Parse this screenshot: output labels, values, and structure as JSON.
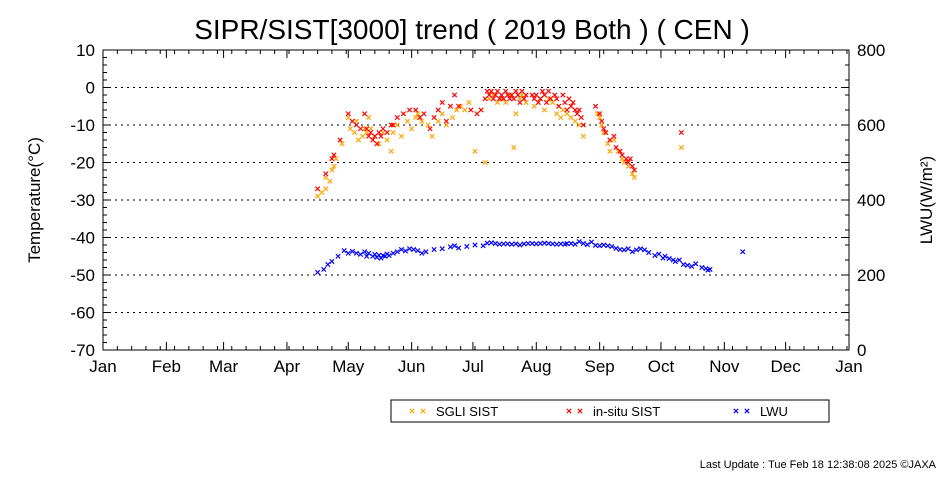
{
  "chart_data": {
    "type": "scatter",
    "title": "SIPR/SIST[3000] trend ( 2019 Both ) ( CEN )",
    "ylabel": "Temperature(°C)",
    "y2label": "LWU(W/m²)",
    "x_ticks": [
      "Jan",
      "Feb",
      "Mar",
      "Apr",
      "May",
      "Jun",
      "Jul",
      "Aug",
      "Sep",
      "Oct",
      "Nov",
      "Dec",
      "Jan"
    ],
    "x_unit": "day of year",
    "x_range": [
      1,
      366
    ],
    "ylim": [
      -70,
      10
    ],
    "y_ticks": [
      "10",
      "0",
      "-10",
      "-20",
      "-30",
      "-40",
      "-50",
      "-60",
      "-70"
    ],
    "y2lim": [
      0,
      800
    ],
    "y2_ticks": [
      "800",
      "600",
      "400",
      "200",
      "0"
    ],
    "grid": "dotted horizontal lines at -60 to 0",
    "legend_position": "bottom-right",
    "legend_labels": [
      "SGLI SIST",
      "in-situ SIST",
      "LWU"
    ],
    "series": [
      {
        "name": "SGLI SIST",
        "axis": "left",
        "color": "#ffa500",
        "points": [
          [
            106,
            -29
          ],
          [
            108,
            -28
          ],
          [
            110,
            -27
          ],
          [
            110,
            -24
          ],
          [
            112,
            -25
          ],
          [
            113,
            -22
          ],
          [
            114,
            -21
          ],
          [
            115,
            -19
          ],
          [
            118,
            -15
          ],
          [
            121,
            -8
          ],
          [
            122,
            -11
          ],
          [
            124,
            -12
          ],
          [
            125,
            -9
          ],
          [
            126,
            -14
          ],
          [
            128,
            -13
          ],
          [
            129,
            -11
          ],
          [
            130,
            -12
          ],
          [
            131,
            -8
          ],
          [
            132,
            -11
          ],
          [
            134,
            -13
          ],
          [
            136,
            -15
          ],
          [
            138,
            -12
          ],
          [
            140,
            -14
          ],
          [
            142,
            -17
          ],
          [
            143,
            -12
          ],
          [
            145,
            -10
          ],
          [
            147,
            -13
          ],
          [
            150,
            -9
          ],
          [
            152,
            -11
          ],
          [
            154,
            -8
          ],
          [
            155,
            -7
          ],
          [
            157,
            -9
          ],
          [
            160,
            -10
          ],
          [
            162,
            -13
          ],
          [
            165,
            -9
          ],
          [
            167,
            -7
          ],
          [
            169,
            -10
          ],
          [
            172,
            -8
          ],
          [
            174,
            -6
          ],
          [
            176,
            -5
          ],
          [
            178,
            -6
          ],
          [
            180,
            -4
          ],
          [
            183,
            -17
          ],
          [
            188,
            -20
          ],
          [
            190,
            -3
          ],
          [
            192,
            -2
          ],
          [
            194,
            -4
          ],
          [
            196,
            -3
          ],
          [
            198,
            -4
          ],
          [
            200,
            -2
          ],
          [
            202,
            -16
          ],
          [
            203,
            -7
          ],
          [
            205,
            -3
          ],
          [
            206,
            -2
          ],
          [
            208,
            -4
          ],
          [
            212,
            -5
          ],
          [
            215,
            -3
          ],
          [
            217,
            -6
          ],
          [
            219,
            -3
          ],
          [
            221,
            -4
          ],
          [
            223,
            -7
          ],
          [
            224,
            -5
          ],
          [
            225,
            -8
          ],
          [
            226,
            -6
          ],
          [
            228,
            -7
          ],
          [
            230,
            -8
          ],
          [
            232,
            -9
          ],
          [
            234,
            -10
          ],
          [
            236,
            -13
          ],
          [
            243,
            -7
          ],
          [
            244,
            -8
          ],
          [
            245,
            -10
          ],
          [
            246,
            -12
          ],
          [
            248,
            -15
          ],
          [
            249,
            -17
          ],
          [
            251,
            -14
          ],
          [
            253,
            -17
          ],
          [
            255,
            -19
          ],
          [
            256,
            -20
          ],
          [
            258,
            -21
          ],
          [
            260,
            -23
          ],
          [
            261,
            -24
          ],
          [
            284,
            -16
          ]
        ]
      },
      {
        "name": "in-situ SIST",
        "axis": "left",
        "color": "#ff0000",
        "points": [
          [
            106,
            -27
          ],
          [
            110,
            -23
          ],
          [
            113,
            -19
          ],
          [
            114,
            -18
          ],
          [
            117,
            -14
          ],
          [
            121,
            -7
          ],
          [
            123,
            -9
          ],
          [
            125,
            -10
          ],
          [
            127,
            -11
          ],
          [
            129,
            -7
          ],
          [
            130,
            -11
          ],
          [
            131,
            -13
          ],
          [
            132,
            -12
          ],
          [
            133,
            -14
          ],
          [
            134,
            -13
          ],
          [
            135,
            -15
          ],
          [
            136,
            -12
          ],
          [
            137,
            -13
          ],
          [
            138,
            -11
          ],
          [
            140,
            -12
          ],
          [
            142,
            -10
          ],
          [
            143,
            -10
          ],
          [
            145,
            -8
          ],
          [
            148,
            -7
          ],
          [
            151,
            -6
          ],
          [
            154,
            -6
          ],
          [
            156,
            -8
          ],
          [
            158,
            -7
          ],
          [
            161,
            -11
          ],
          [
            163,
            -8
          ],
          [
            165,
            -6
          ],
          [
            167,
            -4
          ],
          [
            169,
            -9
          ],
          [
            171,
            -5
          ],
          [
            173,
            -2
          ],
          [
            175,
            -5
          ],
          [
            181,
            -6
          ],
          [
            184,
            -7
          ],
          [
            186,
            -6
          ],
          [
            188,
            -3
          ],
          [
            189,
            -1
          ],
          [
            190,
            -2
          ],
          [
            191,
            -1
          ],
          [
            192,
            -3
          ],
          [
            193,
            -2
          ],
          [
            194,
            -1
          ],
          [
            195,
            -3
          ],
          [
            196,
            -2
          ],
          [
            197,
            -3
          ],
          [
            198,
            -1
          ],
          [
            199,
            -2
          ],
          [
            200,
            -3
          ],
          [
            201,
            -2
          ],
          [
            202,
            -3
          ],
          [
            203,
            -1
          ],
          [
            204,
            -2
          ],
          [
            205,
            -4
          ],
          [
            206,
            -1
          ],
          [
            207,
            -3
          ],
          [
            208,
            -2
          ],
          [
            211,
            -2
          ],
          [
            212,
            -3
          ],
          [
            213,
            -2
          ],
          [
            214,
            -4
          ],
          [
            215,
            -3
          ],
          [
            216,
            -1
          ],
          [
            217,
            -2
          ],
          [
            218,
            -4
          ],
          [
            219,
            -1
          ],
          [
            220,
            -3
          ],
          [
            222,
            -2
          ],
          [
            223,
            -3
          ],
          [
            224,
            -5
          ],
          [
            226,
            -2
          ],
          [
            227,
            -4
          ],
          [
            228,
            -6
          ],
          [
            229,
            -3
          ],
          [
            230,
            -5
          ],
          [
            231,
            -4
          ],
          [
            232,
            -6
          ],
          [
            233,
            -7
          ],
          [
            234,
            -6
          ],
          [
            235,
            -8
          ],
          [
            236,
            -10
          ],
          [
            242,
            -5
          ],
          [
            244,
            -7
          ],
          [
            245,
            -9
          ],
          [
            246,
            -11
          ],
          [
            247,
            -12
          ],
          [
            249,
            -14
          ],
          [
            251,
            -13
          ],
          [
            252,
            -16
          ],
          [
            254,
            -17
          ],
          [
            255,
            -18
          ],
          [
            257,
            -19
          ],
          [
            258,
            -20
          ],
          [
            259,
            -19
          ],
          [
            260,
            -21
          ],
          [
            261,
            -22
          ],
          [
            284,
            -12
          ]
        ]
      },
      {
        "name": "LWU",
        "axis": "right",
        "color": "#0000ff",
        "points": [
          [
            106,
            207
          ],
          [
            109,
            215
          ],
          [
            111,
            228
          ],
          [
            113,
            236
          ],
          [
            116,
            250
          ],
          [
            119,
            265
          ],
          [
            121,
            258
          ],
          [
            123,
            263
          ],
          [
            125,
            258
          ],
          [
            127,
            255
          ],
          [
            129,
            262
          ],
          [
            130,
            250
          ],
          [
            131,
            258
          ],
          [
            133,
            250
          ],
          [
            134,
            255
          ],
          [
            135,
            247
          ],
          [
            136,
            253
          ],
          [
            137,
            245
          ],
          [
            138,
            252
          ],
          [
            139,
            250
          ],
          [
            140,
            256
          ],
          [
            141,
            252
          ],
          [
            143,
            258
          ],
          [
            145,
            262
          ],
          [
            147,
            268
          ],
          [
            149,
            264
          ],
          [
            151,
            270
          ],
          [
            153,
            268
          ],
          [
            155,
            265
          ],
          [
            157,
            258
          ],
          [
            159,
            262
          ],
          [
            163,
            268
          ],
          [
            167,
            270
          ],
          [
            171,
            275
          ],
          [
            173,
            278
          ],
          [
            175,
            272
          ],
          [
            179,
            276
          ],
          [
            183,
            280
          ],
          [
            187,
            278
          ],
          [
            189,
            285
          ],
          [
            191,
            286
          ],
          [
            193,
            284
          ],
          [
            195,
            282
          ],
          [
            197,
            283
          ],
          [
            199,
            283
          ],
          [
            201,
            282
          ],
          [
            203,
            283
          ],
          [
            205,
            280
          ],
          [
            207,
            283
          ],
          [
            209,
            284
          ],
          [
            211,
            284
          ],
          [
            213,
            283
          ],
          [
            215,
            284
          ],
          [
            217,
            285
          ],
          [
            219,
            284
          ],
          [
            221,
            283
          ],
          [
            223,
            282
          ],
          [
            225,
            283
          ],
          [
            227,
            282
          ],
          [
            228,
            284
          ],
          [
            230,
            284
          ],
          [
            232,
            282
          ],
          [
            234,
            289
          ],
          [
            236,
            284
          ],
          [
            238,
            281
          ],
          [
            240,
            288
          ],
          [
            242,
            279
          ],
          [
            244,
            278
          ],
          [
            246,
            280
          ],
          [
            248,
            278
          ],
          [
            250,
            276
          ],
          [
            252,
            271
          ],
          [
            254,
            268
          ],
          [
            256,
            267
          ],
          [
            258,
            270
          ],
          [
            260,
            262
          ],
          [
            262,
            267
          ],
          [
            264,
            270
          ],
          [
            266,
            267
          ],
          [
            268,
            260
          ],
          [
            271,
            252
          ],
          [
            273,
            256
          ],
          [
            275,
            245
          ],
          [
            276,
            250
          ],
          [
            278,
            244
          ],
          [
            280,
            240
          ],
          [
            281,
            236
          ],
          [
            283,
            240
          ],
          [
            285,
            228
          ],
          [
            287,
            226
          ],
          [
            289,
            223
          ],
          [
            291,
            230
          ],
          [
            294,
            220
          ],
          [
            296,
            217
          ],
          [
            297,
            213
          ],
          [
            298,
            215
          ],
          [
            314,
            262
          ]
        ]
      }
    ]
  },
  "footer": {
    "last_update": "Last Update : Tue Feb 18 12:38:08 2025  ©JAXA"
  }
}
